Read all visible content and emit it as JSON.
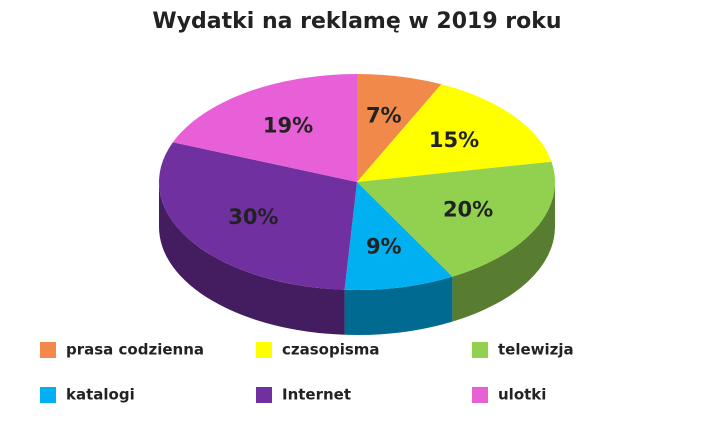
{
  "chart_data": {
    "type": "pie",
    "title": "Wydatki na reklamę w 2019 roku",
    "categories": [
      "prasa codzienna",
      "czasopisma",
      "telewizja",
      "katalogi",
      "Internet",
      "ulotki"
    ],
    "values": [
      7,
      15,
      20,
      9,
      30,
      19
    ],
    "value_labels": [
      "7%",
      "15%",
      "20%",
      "9%",
      "30%",
      "19%"
    ],
    "colors": [
      "#f0894a",
      "#ffff00",
      "#92d050",
      "#00b0f0",
      "#7030a0",
      "#e860d8"
    ]
  }
}
